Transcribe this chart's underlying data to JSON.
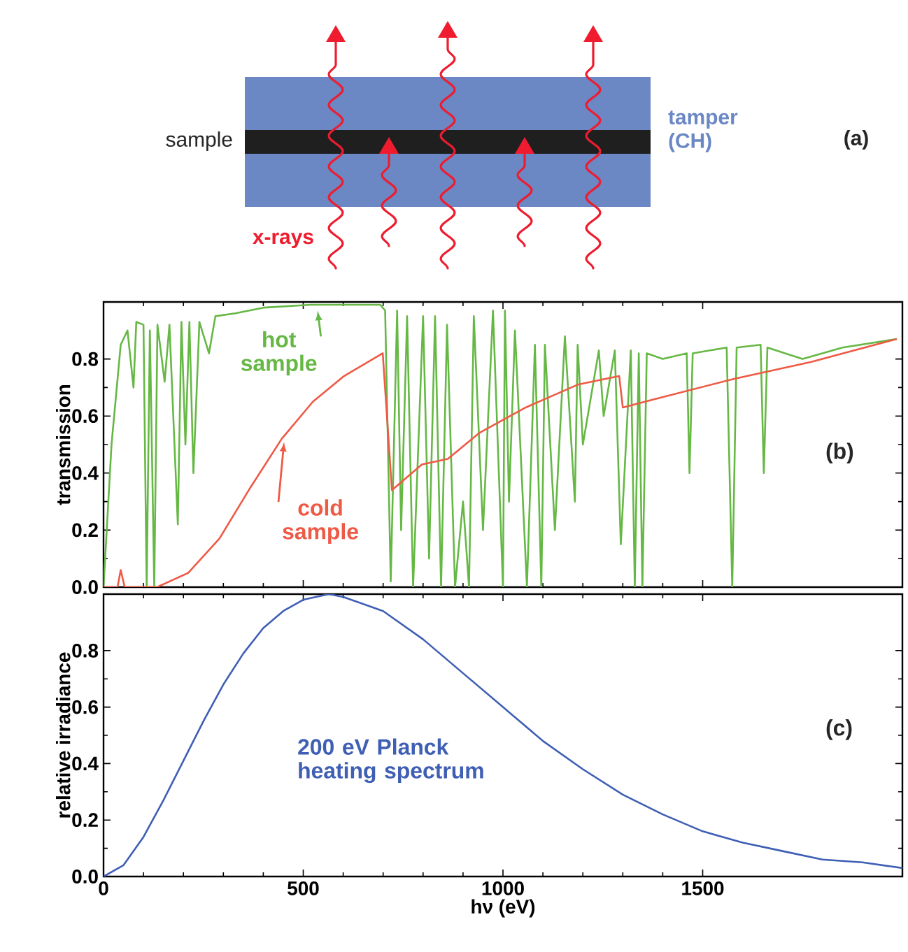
{
  "chart_data": [
    {
      "type": "other",
      "annotations": [
        "sample",
        "tamper (CH)",
        "x-rays",
        "(a)"
      ]
    },
    {
      "type": "line",
      "ylabel": "transmission",
      "xlim": [
        0,
        2000
      ],
      "ylim": [
        0,
        1
      ],
      "xticks": [
        0,
        500,
        1000,
        1500
      ],
      "yticks": [
        {
          "value": 0,
          "label": "0.0"
        },
        0.2,
        0.4,
        0.6,
        0.8
      ],
      "tick_labels": "y",
      "grid": false,
      "series": [
        {
          "color": "#66b845",
          "x": [
            0,
            20,
            43,
            60,
            75,
            82,
            100,
            108,
            116,
            127,
            135,
            153,
            165,
            186,
            195,
            205,
            215,
            225,
            240,
            264,
            280,
            330,
            400,
            520,
            600,
            693,
            705,
            719,
            735,
            745,
            760,
            775,
            800,
            815,
            830,
            845,
            860,
            880,
            900,
            915,
            927,
            950,
            975,
            1000,
            1005,
            1015,
            1030,
            1060,
            1080,
            1096,
            1105,
            1130,
            1155,
            1180,
            1187,
            1200,
            1240,
            1252,
            1280,
            1295,
            1320,
            1330,
            1340,
            1349,
            1360,
            1400,
            1460,
            1467,
            1475,
            1560,
            1574,
            1585,
            1645,
            1653,
            1662,
            1750,
            1850,
            1986
          ],
          "values": [
            0,
            0.5,
            0.85,
            0.9,
            0.7,
            0.93,
            0.92,
            0.0,
            0.9,
            0.0,
            0.92,
            0.72,
            0.92,
            0.22,
            0.93,
            0.5,
            0.93,
            0.4,
            0.93,
            0.82,
            0.95,
            0.96,
            0.98,
            0.99,
            0.99,
            0.99,
            0.97,
            0.02,
            0.97,
            0.2,
            0.95,
            0.0,
            0.95,
            0.1,
            0.95,
            0.0,
            0.92,
            0.0,
            0.3,
            0.0,
            0.95,
            0.2,
            0.97,
            0.0,
            0.97,
            0.3,
            0.9,
            0.0,
            0.85,
            0.0,
            0.85,
            0.2,
            0.88,
            0.3,
            0.85,
            0.5,
            0.83,
            0.6,
            0.83,
            0.15,
            0.83,
            0.0,
            0.82,
            0.0,
            0.82,
            0.8,
            0.82,
            0.4,
            0.82,
            0.84,
            0.0,
            0.84,
            0.85,
            0.4,
            0.84,
            0.8,
            0.84,
            0.87
          ]
        },
        {
          "color": "#ee5a45",
          "x": [
            0,
            35,
            43,
            53,
            134,
            212,
            290,
            368,
            446,
            524,
            602,
            699,
            722,
            797,
            862,
            940,
            1057,
            1187,
            1291,
            1300,
            1382,
            1577,
            1772,
            1986
          ],
          "values": [
            0,
            0,
            0.06,
            0,
            0,
            0.05,
            0.17,
            0.35,
            0.52,
            0.65,
            0.74,
            0.82,
            0.34,
            0.43,
            0.45,
            0.54,
            0.63,
            0.71,
            0.74,
            0.63,
            0.66,
            0.73,
            0.79,
            0.87
          ]
        }
      ],
      "annotations": [
        {
          "text": "hot sample",
          "x": 536,
          "y": 0.97
        },
        {
          "text": "cold sample",
          "x": 452,
          "y": 0.51
        },
        "(b)"
      ]
    },
    {
      "type": "line",
      "xlabel": "hν (eV)",
      "ylabel": "relative irradiance",
      "xlim": [
        0,
        2000
      ],
      "ylim": [
        0,
        1
      ],
      "xticks": [
        0,
        500,
        1000,
        1500
      ],
      "yticks": [
        {
          "value": 0,
          "label": "0.0"
        },
        0.2,
        0.4,
        0.6,
        0.8
      ],
      "grid": false,
      "series": [
        {
          "color": "#3f5fb5",
          "x": [
            0,
            50,
            100,
            150,
            200,
            250,
            300,
            350,
            400,
            450,
            500,
            564,
            600,
            700,
            800,
            900,
            1000,
            1100,
            1200,
            1300,
            1400,
            1500,
            1600,
            1700,
            1800,
            1900,
            2000
          ],
          "values": [
            0,
            0.04,
            0.14,
            0.27,
            0.41,
            0.55,
            0.68,
            0.79,
            0.88,
            0.94,
            0.98,
            1.0,
            0.99,
            0.94,
            0.84,
            0.72,
            0.6,
            0.48,
            0.38,
            0.29,
            0.22,
            0.16,
            0.12,
            0.09,
            0.06,
            0.05,
            0.03
          ]
        }
      ],
      "annotations": [
        "200 eV Planck heating spectrum",
        "(c)"
      ]
    }
  ]
}
